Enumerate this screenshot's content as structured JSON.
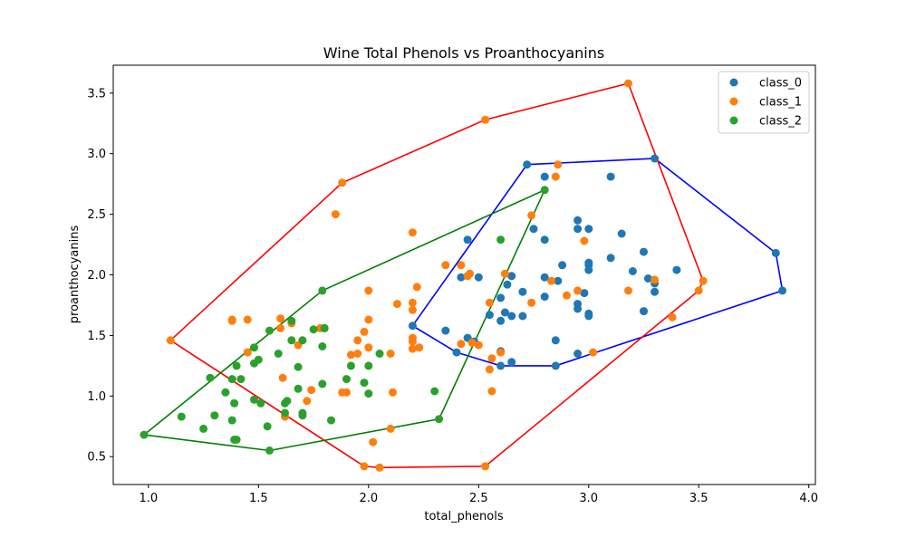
{
  "chart_data": {
    "type": "scatter",
    "title": "Wine Total Phenols vs Proanthocyanins",
    "xlabel": "total_phenols",
    "ylabel": "proanthocyanins",
    "xlim": [
      0.84,
      4.03
    ],
    "ylim": [
      0.27,
      3.73
    ],
    "xticks": [
      1.0,
      1.5,
      2.0,
      2.5,
      3.0,
      3.5,
      4.0
    ],
    "xtick_labels": [
      "1.0",
      "1.5",
      "2.0",
      "2.5",
      "3.0",
      "3.5",
      "4.0"
    ],
    "yticks": [
      0.5,
      1.0,
      1.5,
      2.0,
      2.5,
      3.0,
      3.5
    ],
    "ytick_labels": [
      "0.5",
      "1.0",
      "1.5",
      "2.0",
      "2.5",
      "3.0",
      "3.5"
    ],
    "grid": false,
    "legend": {
      "placement": "top-right",
      "entries": [
        "class_0",
        "class_1",
        "class_2"
      ]
    },
    "series": [
      {
        "name": "class_0",
        "color": "#1f77b4",
        "hull_color": "#0000ff",
        "points": [
          [
            2.2,
            1.58
          ],
          [
            2.35,
            1.54
          ],
          [
            2.4,
            1.36
          ],
          [
            2.42,
            1.98
          ],
          [
            2.45,
            1.48
          ],
          [
            2.45,
            2.29
          ],
          [
            2.48,
            1.45
          ],
          [
            2.5,
            1.98
          ],
          [
            2.55,
            1.67
          ],
          [
            2.6,
            1.37
          ],
          [
            2.6,
            1.81
          ],
          [
            2.6,
            1.62
          ],
          [
            2.6,
            1.25
          ],
          [
            2.62,
            1.69
          ],
          [
            2.63,
            1.92
          ],
          [
            2.65,
            1.28
          ],
          [
            2.65,
            1.99
          ],
          [
            2.65,
            1.66
          ],
          [
            2.7,
            1.86
          ],
          [
            2.7,
            1.66
          ],
          [
            2.72,
            2.91
          ],
          [
            2.75,
            2.38
          ],
          [
            2.8,
            2.81
          ],
          [
            2.8,
            2.29
          ],
          [
            2.8,
            1.98
          ],
          [
            2.8,
            1.82
          ],
          [
            2.85,
            1.46
          ],
          [
            2.85,
            1.25
          ],
          [
            2.86,
            1.95
          ],
          [
            2.88,
            2.08
          ],
          [
            2.95,
            2.45
          ],
          [
            2.95,
            2.38
          ],
          [
            2.95,
            1.76
          ],
          [
            2.95,
            1.72
          ],
          [
            2.95,
            1.35
          ],
          [
            2.98,
            1.85
          ],
          [
            3.0,
            2.38
          ],
          [
            3.0,
            2.1
          ],
          [
            3.0,
            2.08
          ],
          [
            3.0,
            2.04
          ],
          [
            3.0,
            1.68
          ],
          [
            3.0,
            1.66
          ],
          [
            3.1,
            2.81
          ],
          [
            3.1,
            2.14
          ],
          [
            3.15,
            2.34
          ],
          [
            3.2,
            2.03
          ],
          [
            3.25,
            2.19
          ],
          [
            3.25,
            1.7
          ],
          [
            3.27,
            1.97
          ],
          [
            3.3,
            2.96
          ],
          [
            3.3,
            1.93
          ],
          [
            3.3,
            1.86
          ],
          [
            3.4,
            2.04
          ],
          [
            3.85,
            2.18
          ],
          [
            3.88,
            1.87
          ]
        ],
        "hull": [
          [
            2.2,
            1.58
          ],
          [
            2.72,
            2.91
          ],
          [
            3.3,
            2.96
          ],
          [
            3.85,
            2.18
          ],
          [
            3.88,
            1.87
          ],
          [
            2.85,
            1.25
          ],
          [
            2.6,
            1.25
          ],
          [
            2.4,
            1.36
          ]
        ]
      },
      {
        "name": "class_1",
        "color": "#ff7f0e",
        "hull_color": "#ff0000",
        "points": [
          [
            1.1,
            1.46
          ],
          [
            1.38,
            1.62
          ],
          [
            1.38,
            1.63
          ],
          [
            1.45,
            1.36
          ],
          [
            1.45,
            1.63
          ],
          [
            1.6,
            1.64
          ],
          [
            1.6,
            1.56
          ],
          [
            1.61,
            1.15
          ],
          [
            1.62,
            0.83
          ],
          [
            1.65,
            1.6
          ],
          [
            1.68,
            1.42
          ],
          [
            1.72,
            0.96
          ],
          [
            1.74,
            1.05
          ],
          [
            1.78,
            1.56
          ],
          [
            1.8,
            1.56
          ],
          [
            1.85,
            2.5
          ],
          [
            1.88,
            2.76
          ],
          [
            1.9,
            1.03
          ],
          [
            1.88,
            1.03
          ],
          [
            1.92,
            1.34
          ],
          [
            1.95,
            1.35
          ],
          [
            1.95,
            1.46
          ],
          [
            1.98,
            1.53
          ],
          [
            1.98,
            0.42
          ],
          [
            2.0,
            1.63
          ],
          [
            2.0,
            1.4
          ],
          [
            2.0,
            1.87
          ],
          [
            2.02,
            0.62
          ],
          [
            2.05,
            0.41
          ],
          [
            2.1,
            1.35
          ],
          [
            2.1,
            0.73
          ],
          [
            2.11,
            1.03
          ],
          [
            2.13,
            1.76
          ],
          [
            2.2,
            2.35
          ],
          [
            2.2,
            1.77
          ],
          [
            2.2,
            1.71
          ],
          [
            2.2,
            1.48
          ],
          [
            2.2,
            1.45
          ],
          [
            2.2,
            1.39
          ],
          [
            2.22,
            1.9
          ],
          [
            2.23,
            1.4
          ],
          [
            2.35,
            2.08
          ],
          [
            2.42,
            2.08
          ],
          [
            2.42,
            1.43
          ],
          [
            2.45,
            1.99
          ],
          [
            2.46,
            2.01
          ],
          [
            2.47,
            1.44
          ],
          [
            2.5,
            1.42
          ],
          [
            2.53,
            3.28
          ],
          [
            2.53,
            0.42
          ],
          [
            2.55,
            1.77
          ],
          [
            2.55,
            1.22
          ],
          [
            2.56,
            1.31
          ],
          [
            2.56,
            1.04
          ],
          [
            2.6,
            1.36
          ],
          [
            2.62,
            2.01
          ],
          [
            2.74,
            2.49
          ],
          [
            2.74,
            1.77
          ],
          [
            2.83,
            1.95
          ],
          [
            2.85,
            2.81
          ],
          [
            2.86,
            2.91
          ],
          [
            2.9,
            1.83
          ],
          [
            2.95,
            1.87
          ],
          [
            2.98,
            2.28
          ],
          [
            3.02,
            1.36
          ],
          [
            3.18,
            3.58
          ],
          [
            3.18,
            1.87
          ],
          [
            3.3,
            1.96
          ],
          [
            3.38,
            1.65
          ],
          [
            3.5,
            1.87
          ],
          [
            3.52,
            1.95
          ]
        ],
        "hull": [
          [
            1.1,
            1.46
          ],
          [
            1.88,
            2.76
          ],
          [
            2.53,
            3.28
          ],
          [
            3.18,
            3.58
          ],
          [
            3.52,
            1.95
          ],
          [
            3.5,
            1.87
          ],
          [
            2.53,
            0.42
          ],
          [
            2.05,
            0.41
          ],
          [
            1.98,
            0.42
          ]
        ]
      },
      {
        "name": "class_2",
        "color": "#2ca02c",
        "hull_color": "#008000",
        "points": [
          [
            0.98,
            0.68
          ],
          [
            1.15,
            0.83
          ],
          [
            1.25,
            0.73
          ],
          [
            1.28,
            1.15
          ],
          [
            1.3,
            0.84
          ],
          [
            1.35,
            1.03
          ],
          [
            1.38,
            0.8
          ],
          [
            1.38,
            1.14
          ],
          [
            1.39,
            0.64
          ],
          [
            1.39,
            0.94
          ],
          [
            1.4,
            1.25
          ],
          [
            1.4,
            0.64
          ],
          [
            1.42,
            1.14
          ],
          [
            1.48,
            1.27
          ],
          [
            1.48,
            0.97
          ],
          [
            1.48,
            1.4
          ],
          [
            1.5,
            1.3
          ],
          [
            1.51,
            0.94
          ],
          [
            1.54,
            0.75
          ],
          [
            1.55,
            1.54
          ],
          [
            1.55,
            0.55
          ],
          [
            1.59,
            1.35
          ],
          [
            1.62,
            0.86
          ],
          [
            1.62,
            0.94
          ],
          [
            1.63,
            0.96
          ],
          [
            1.65,
            1.46
          ],
          [
            1.65,
            1.62
          ],
          [
            1.68,
            1.06
          ],
          [
            1.68,
            1.24
          ],
          [
            1.7,
            0.86
          ],
          [
            1.7,
            0.84
          ],
          [
            1.7,
            1.46
          ],
          [
            1.75,
            1.55
          ],
          [
            1.79,
            1.87
          ],
          [
            1.79,
            1.41
          ],
          [
            1.79,
            1.1
          ],
          [
            1.8,
            1.56
          ],
          [
            1.83,
            0.8
          ],
          [
            1.9,
            1.14
          ],
          [
            1.92,
            1.25
          ],
          [
            1.98,
            1.11
          ],
          [
            2.0,
            1.25
          ],
          [
            2.0,
            1.02
          ],
          [
            2.05,
            1.35
          ],
          [
            2.32,
            0.81
          ],
          [
            2.3,
            1.04
          ],
          [
            2.6,
            2.29
          ],
          [
            2.8,
            2.7
          ]
        ],
        "hull": [
          [
            0.98,
            0.68
          ],
          [
            1.79,
            1.87
          ],
          [
            2.8,
            2.7
          ],
          [
            2.32,
            0.81
          ],
          [
            1.55,
            0.55
          ]
        ]
      }
    ]
  }
}
